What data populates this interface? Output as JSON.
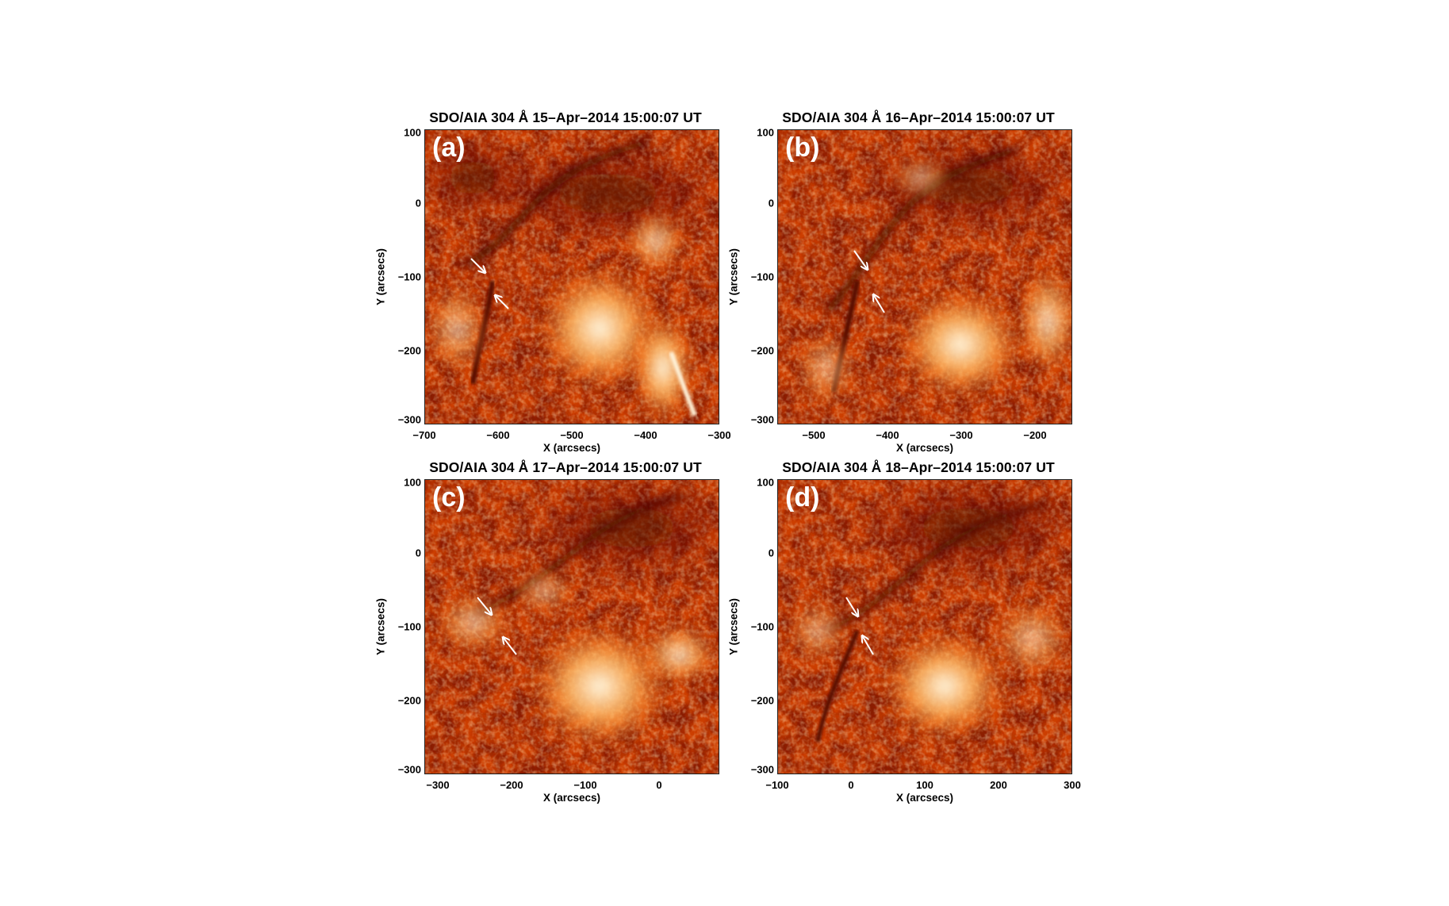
{
  "panels": [
    {
      "id": "a",
      "title": "SDO/AIA 304 Å 15–Apr–2014 15:00:07 UT",
      "label": "(a)",
      "xlabel": "X (arcsecs)",
      "ylabel": "Y (arcsecs)",
      "xticks": [
        "−700",
        "−600",
        "−500",
        "−400",
        "−300"
      ],
      "yticks": [
        "100",
        "0",
        "−100",
        "−200",
        "−300"
      ]
    },
    {
      "id": "b",
      "title": "SDO/AIA 304 Å 16–Apr–2014 15:00:07 UT",
      "label": "(b)",
      "xlabel": "X (arcsecs)",
      "ylabel": "Y (arcsecs)",
      "xticks": [
        "−500",
        "−400",
        "−300",
        "−200"
      ],
      "yticks": [
        "100",
        "0",
        "−100",
        "−200",
        "−300"
      ]
    },
    {
      "id": "c",
      "title": "SDO/AIA 304 Å 17–Apr–2014 15:00:07 UT",
      "label": "(c)",
      "xlabel": "X (arcsecs)",
      "ylabel": "Y (arcsecs)",
      "xticks": [
        "−300",
        "−200",
        "−100",
        "0"
      ],
      "yticks": [
        "100",
        "0",
        "−100",
        "−200",
        "−300"
      ]
    },
    {
      "id": "d",
      "title": "SDO/AIA 304 Å 18–Apr–2014 15:00:07 UT",
      "label": "(d)",
      "xlabel": "X (arcsecs)",
      "ylabel": "Y (arcsecs)",
      "xticks": [
        "−100",
        "0",
        "100",
        "200",
        "300"
      ],
      "yticks": [
        "100",
        "0",
        "−100",
        "−200",
        "−300"
      ]
    }
  ],
  "colors": {
    "dark": "#7a1400",
    "mid": "#d94a00",
    "bright": "#ffb055",
    "hot": "#fff3d6"
  }
}
